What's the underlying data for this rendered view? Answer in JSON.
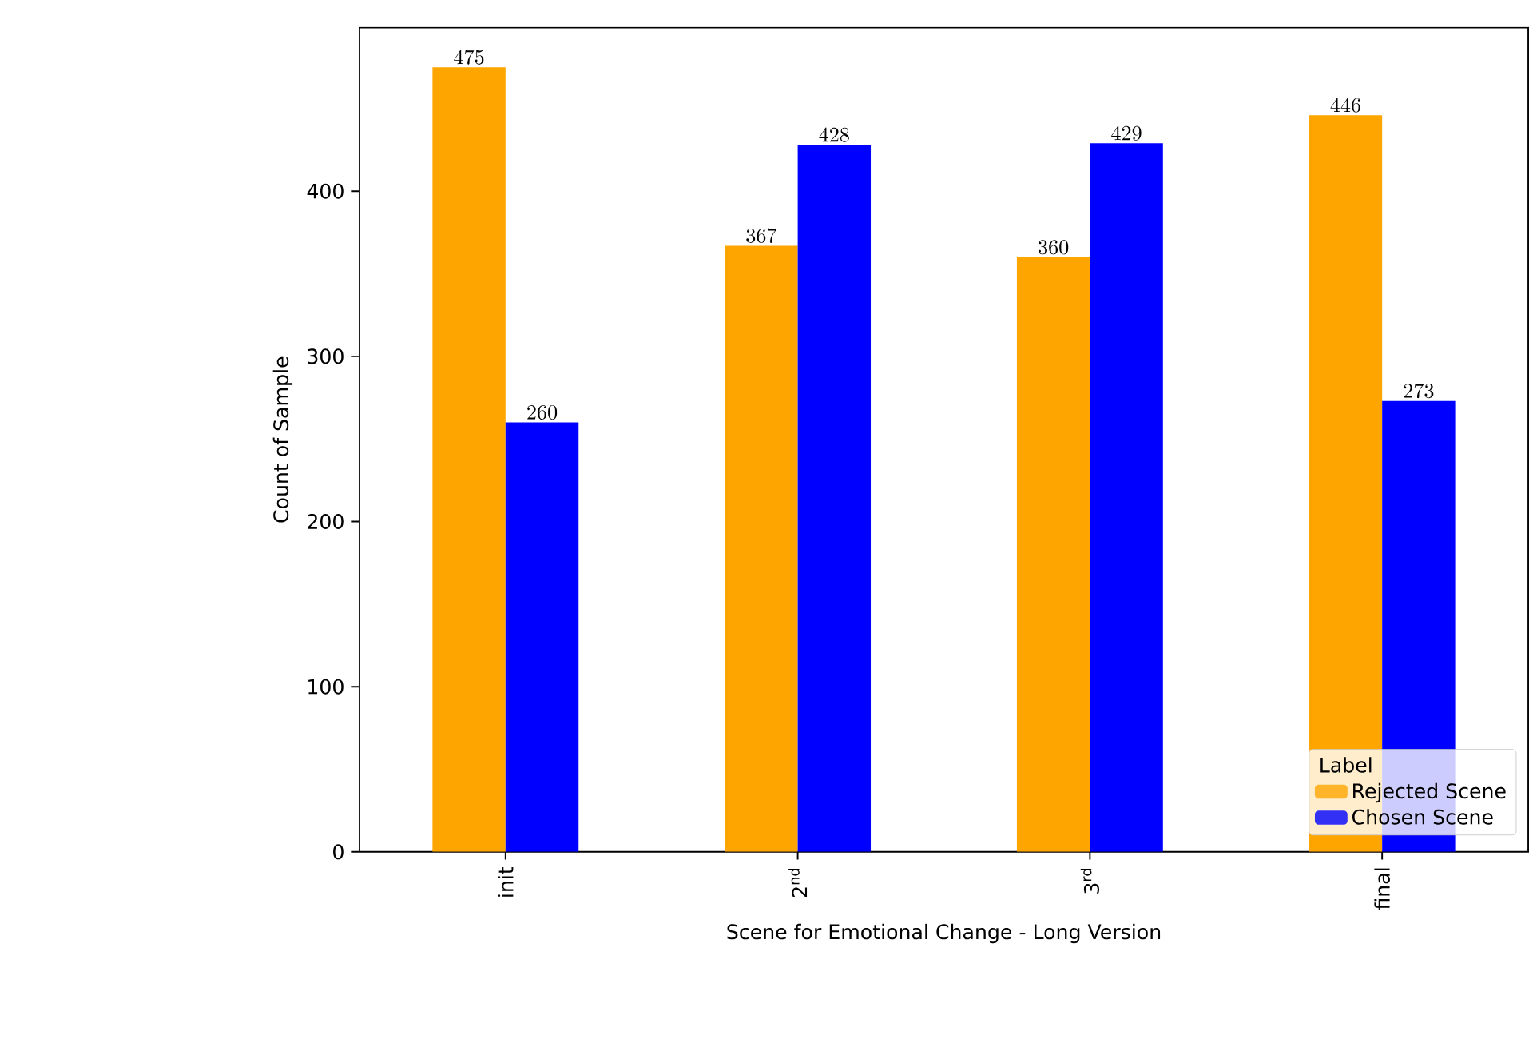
{
  "chart_data": {
    "type": "bar",
    "xlabel": "Scene for Emotional Change - Long Version",
    "ylabel": "Count of Sample",
    "legend_title": "Label",
    "categories": [
      "init",
      "2$^{nd}$",
      "3$^{rd}$",
      "final"
    ],
    "series": [
      {
        "name": "Rejected Scene",
        "color": "#ffa500",
        "values": [
          475,
          367,
          360,
          446
        ]
      },
      {
        "name": "Chosen Scene",
        "color": "#0000ff",
        "values": [
          260,
          428,
          429,
          273
        ]
      }
    ],
    "ylim": [
      0,
      499
    ],
    "yticks": [
      0,
      100,
      200,
      300,
      400
    ],
    "data_labels": true,
    "legend": "bottom right"
  }
}
